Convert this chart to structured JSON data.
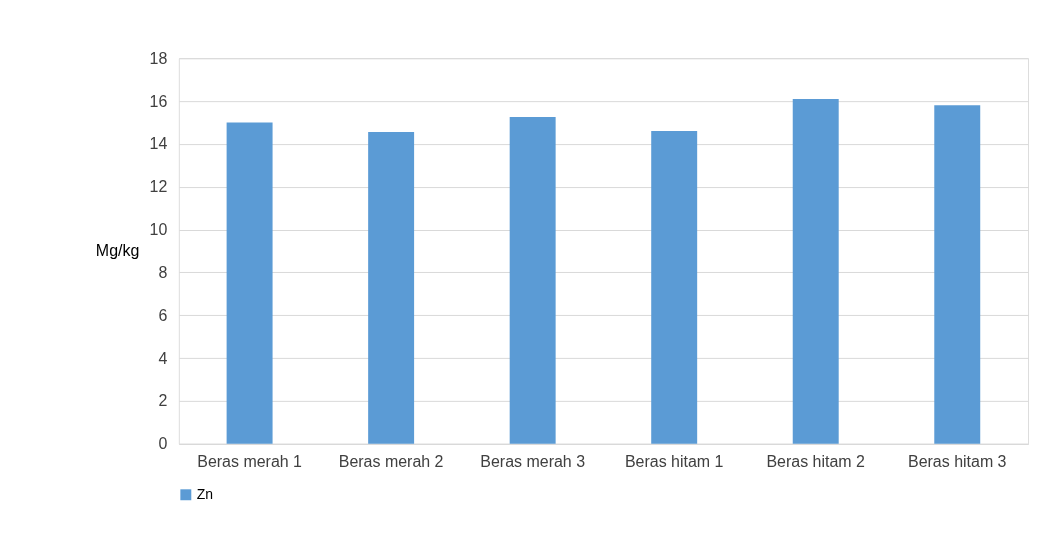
{
  "chart_data": {
    "type": "bar",
    "ylabel": "Mg/kg",
    "categories": [
      "Beras merah 1",
      "Beras merah 2",
      "Beras merah 3",
      "Beras hitam 1",
      "Beras hitam 2",
      "Beras hitam 3"
    ],
    "series": [
      {
        "name": "Zn",
        "color": "#5b9bd5",
        "values": [
          15.0,
          14.55,
          15.25,
          14.6,
          16.1,
          15.8
        ]
      }
    ],
    "ylim": [
      0,
      18
    ],
    "yticks": [
      0,
      2,
      4,
      6,
      8,
      10,
      12,
      14,
      16,
      18
    ],
    "grid": "y",
    "legend": "bottom"
  }
}
